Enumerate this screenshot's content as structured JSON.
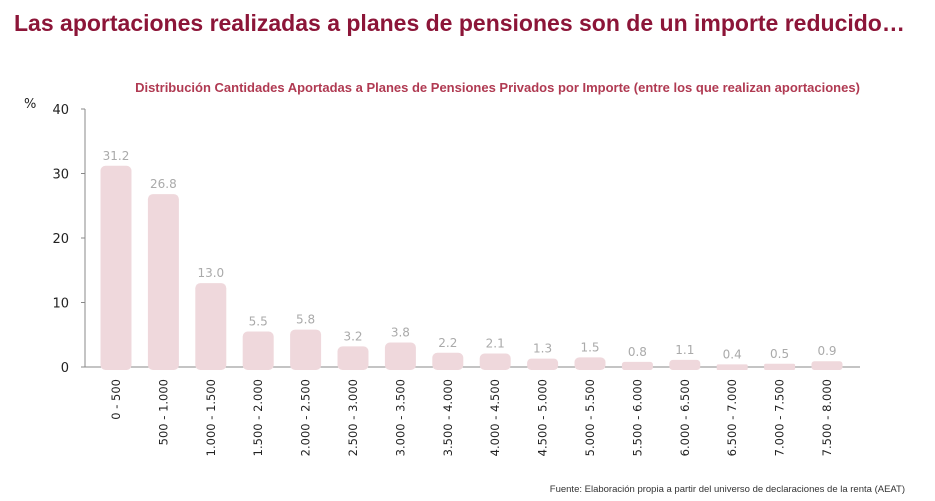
{
  "header": {
    "title": "Las aportaciones realizadas a planes de pensiones son de un importe reducido…"
  },
  "source": "Fuente: Elaboración propia a partir del universo de declaraciones de la renta (AEAT)",
  "chart_data": {
    "type": "bar",
    "title": "Distribución Cantidades Aportadas a Planes de Pensiones Privados por Importe (entre los que realizan aportaciones)",
    "ylabel": "%",
    "xlabel": "",
    "ylim": [
      0,
      40
    ],
    "yticks": [
      0,
      10,
      20,
      30,
      40
    ],
    "grid": false,
    "bar_color": "#efd8dc",
    "label_color": "#aaaaaa",
    "categories": [
      "0 - 500",
      "500 - 1.000",
      "1.000 - 1.500",
      "1.500 - 2.000",
      "2.000 - 2.500",
      "2.500 - 3.000",
      "3.000 - 3.500",
      "3.500 - 4.000",
      "4.000 - 4.500",
      "4.500 - 5.000",
      "5.000 - 5.500",
      "5.500 - 6.000",
      "6.000 - 6.500",
      "6.500 - 7.000",
      "7.000 - 7.500",
      "7.500 - 8.000"
    ],
    "values": [
      31.2,
      26.8,
      13.0,
      5.5,
      5.8,
      3.2,
      3.8,
      2.2,
      2.1,
      1.3,
      1.5,
      0.8,
      1.1,
      0.4,
      0.5,
      0.9
    ],
    "data_labels": [
      "31.2",
      "26.8",
      "13.0",
      "5.5",
      "5.8",
      "3.2",
      "3.8",
      "2.2",
      "2.1",
      "1.3",
      "1.5",
      "0.8",
      "1.1",
      "0.4",
      "0.5",
      "0.9"
    ]
  }
}
